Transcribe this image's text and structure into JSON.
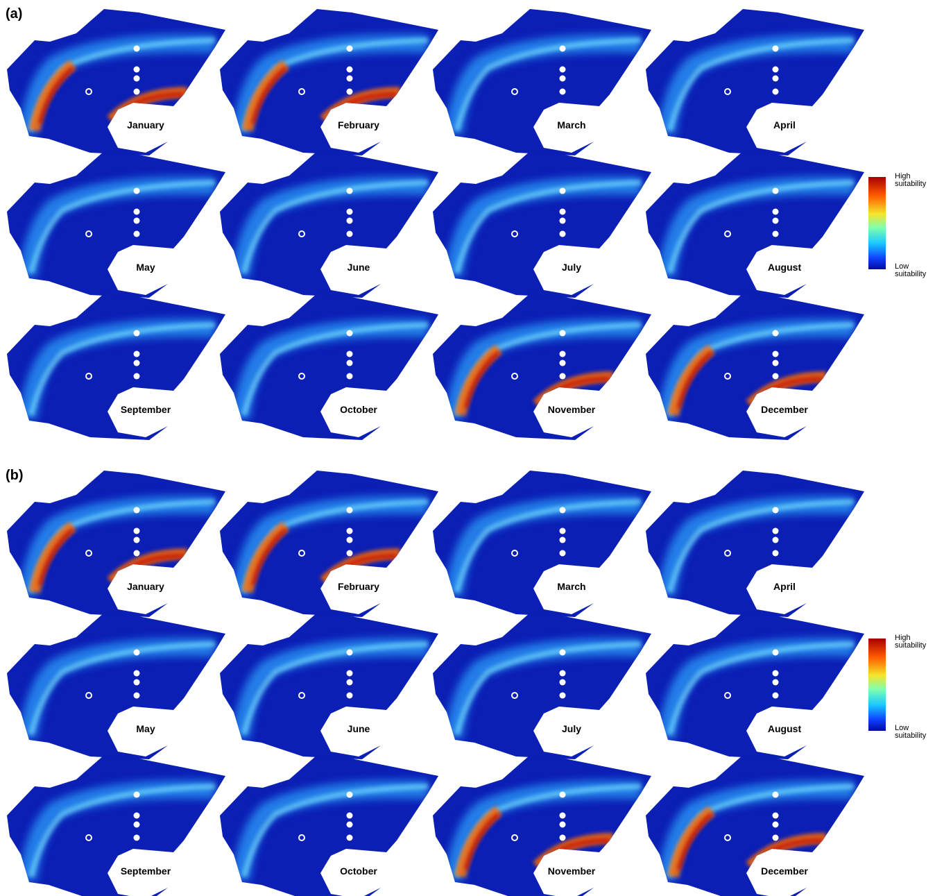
{
  "panels": [
    {
      "label": "(a)",
      "months": [
        "January",
        "February",
        "March",
        "April",
        "May",
        "June",
        "July",
        "August",
        "September",
        "October",
        "November",
        "December"
      ],
      "legend": {
        "high": "High suitability",
        "low": "Low suitability"
      }
    },
    {
      "label": "(b)",
      "months": [
        "January",
        "February",
        "March",
        "April",
        "May",
        "June",
        "July",
        "August",
        "September",
        "October",
        "November",
        "December"
      ],
      "legend": {
        "high": "High suitability",
        "low": "Low suitability"
      }
    }
  ]
}
